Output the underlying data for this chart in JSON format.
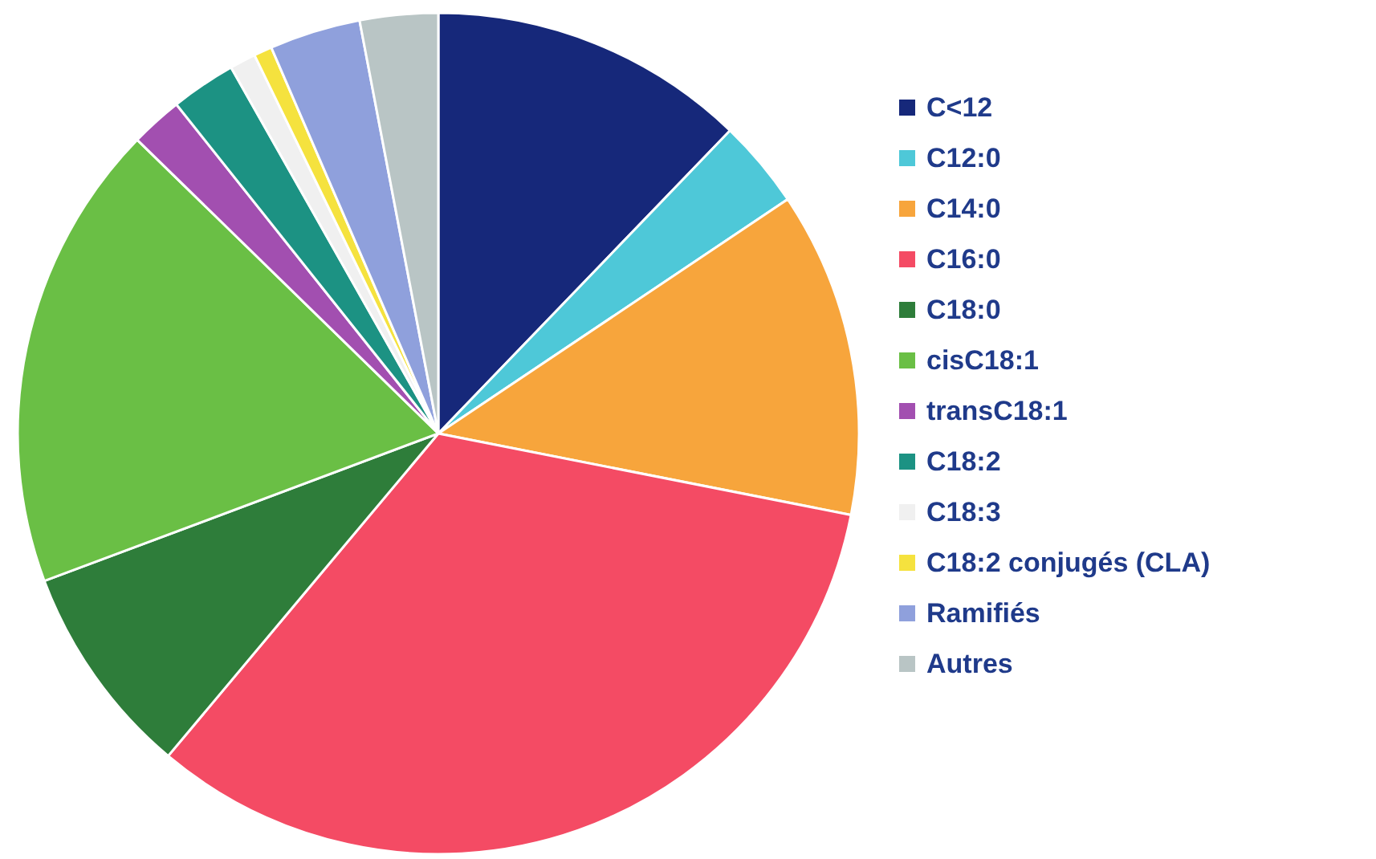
{
  "chart_data": {
    "type": "pie",
    "categories": [
      "C<12",
      "C12:0",
      "C14:0",
      "C16:0",
      "C18:0",
      "cisC18:1",
      "transC18:1",
      "C18:2",
      "C18:3",
      "C18:2 conjugés (CLA)",
      "Ramifiés",
      "Autres"
    ],
    "values": [
      12.2,
      3.4,
      12.5,
      33,
      8.2,
      18,
      2,
      2.5,
      1,
      0.7,
      3.5,
      3
    ],
    "colors": [
      "#16287a",
      "#4ec8d8",
      "#f7a53c",
      "#f44b64",
      "#2e7d3a",
      "#6abf45",
      "#a24fb0",
      "#1c9283",
      "#f0f0f0",
      "#f5e23e",
      "#8fa0dc",
      "#b9c5c5"
    ],
    "legend": "right"
  }
}
